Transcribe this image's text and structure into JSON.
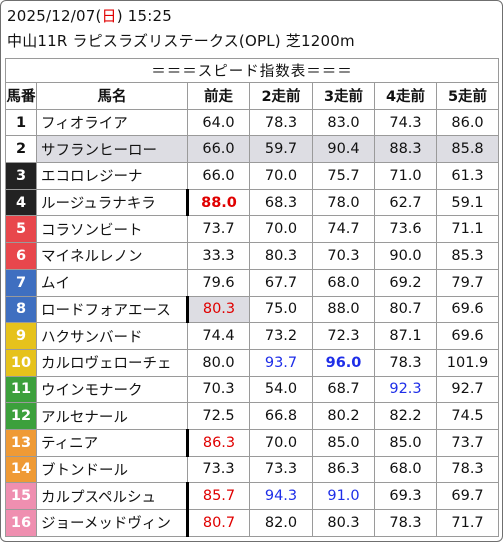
{
  "header": {
    "date": "2025/12/07",
    "weekday_open": "(",
    "weekday": "日",
    "weekday_close": ")",
    "time": "15:25",
    "race": "中山11R ラピスラズリステークス(OPL) 芝1200m"
  },
  "table": {
    "title": "＝＝＝スピード指数表＝＝＝",
    "columns": [
      "馬番",
      "馬名",
      "前走",
      "2走前",
      "3走前",
      "4走前",
      "5走前"
    ],
    "rows": [
      {
        "num": "1",
        "name": "フィオライア",
        "v": [
          "64.0",
          "78.3",
          "83.0",
          "74.3",
          "86.0"
        ]
      },
      {
        "num": "2",
        "name": "サフランヒーロー",
        "v": [
          "66.0",
          "59.7",
          "90.4",
          "88.3",
          "85.8"
        ]
      },
      {
        "num": "3",
        "name": "エコロレジーナ",
        "v": [
          "66.0",
          "70.0",
          "75.7",
          "71.0",
          "61.3"
        ]
      },
      {
        "num": "4",
        "name": "ルージュラナキラ",
        "v": [
          "88.0",
          "68.3",
          "78.0",
          "62.7",
          "59.1"
        ]
      },
      {
        "num": "5",
        "name": "コラソンビート",
        "v": [
          "73.7",
          "70.0",
          "74.7",
          "73.6",
          "71.1"
        ]
      },
      {
        "num": "6",
        "name": "マイネルレノン",
        "v": [
          "33.3",
          "80.3",
          "70.3",
          "90.0",
          "85.3"
        ]
      },
      {
        "num": "7",
        "name": "ムイ",
        "v": [
          "79.6",
          "67.7",
          "68.0",
          "69.2",
          "79.7"
        ]
      },
      {
        "num": "8",
        "name": "ロードフォアエース",
        "v": [
          "80.3",
          "75.0",
          "88.0",
          "80.7",
          "69.6"
        ]
      },
      {
        "num": "9",
        "name": "ハクサンバード",
        "v": [
          "74.4",
          "73.2",
          "72.3",
          "87.1",
          "69.6"
        ]
      },
      {
        "num": "10",
        "name": "カルロヴェローチェ",
        "v": [
          "80.0",
          "93.7",
          "96.0",
          "78.3",
          "101.9"
        ]
      },
      {
        "num": "11",
        "name": "ウインモナーク",
        "v": [
          "70.3",
          "54.0",
          "68.7",
          "92.3",
          "92.7"
        ]
      },
      {
        "num": "12",
        "name": "アルセナール",
        "v": [
          "72.5",
          "66.8",
          "80.2",
          "82.2",
          "74.5"
        ]
      },
      {
        "num": "13",
        "name": "ティニア",
        "v": [
          "86.3",
          "70.0",
          "85.0",
          "85.0",
          "73.7"
        ]
      },
      {
        "num": "14",
        "name": "ブトンドール",
        "v": [
          "73.3",
          "73.3",
          "86.3",
          "68.0",
          "78.3"
        ]
      },
      {
        "num": "15",
        "name": "カルプスペルシュ",
        "v": [
          "85.7",
          "94.3",
          "91.0",
          "69.3",
          "69.7"
        ]
      },
      {
        "num": "16",
        "name": "ジョーメッドヴィン",
        "v": [
          "80.7",
          "82.0",
          "80.3",
          "78.3",
          "71.7"
        ]
      }
    ]
  },
  "colors": {
    "gate_white": "#ffffff",
    "gate_black": "#222222",
    "gate_red": "#e8474c",
    "gate_blue": "#3f6fc0",
    "gate_yellow": "#e6c21c",
    "gate_green": "#3ca03c",
    "gate_orange": "#ef9a35",
    "gate_pink": "#ef8fb0",
    "highlight_red": "#e00000",
    "highlight_blue": "#1e2ee8",
    "gray_row": "#dddde3"
  }
}
